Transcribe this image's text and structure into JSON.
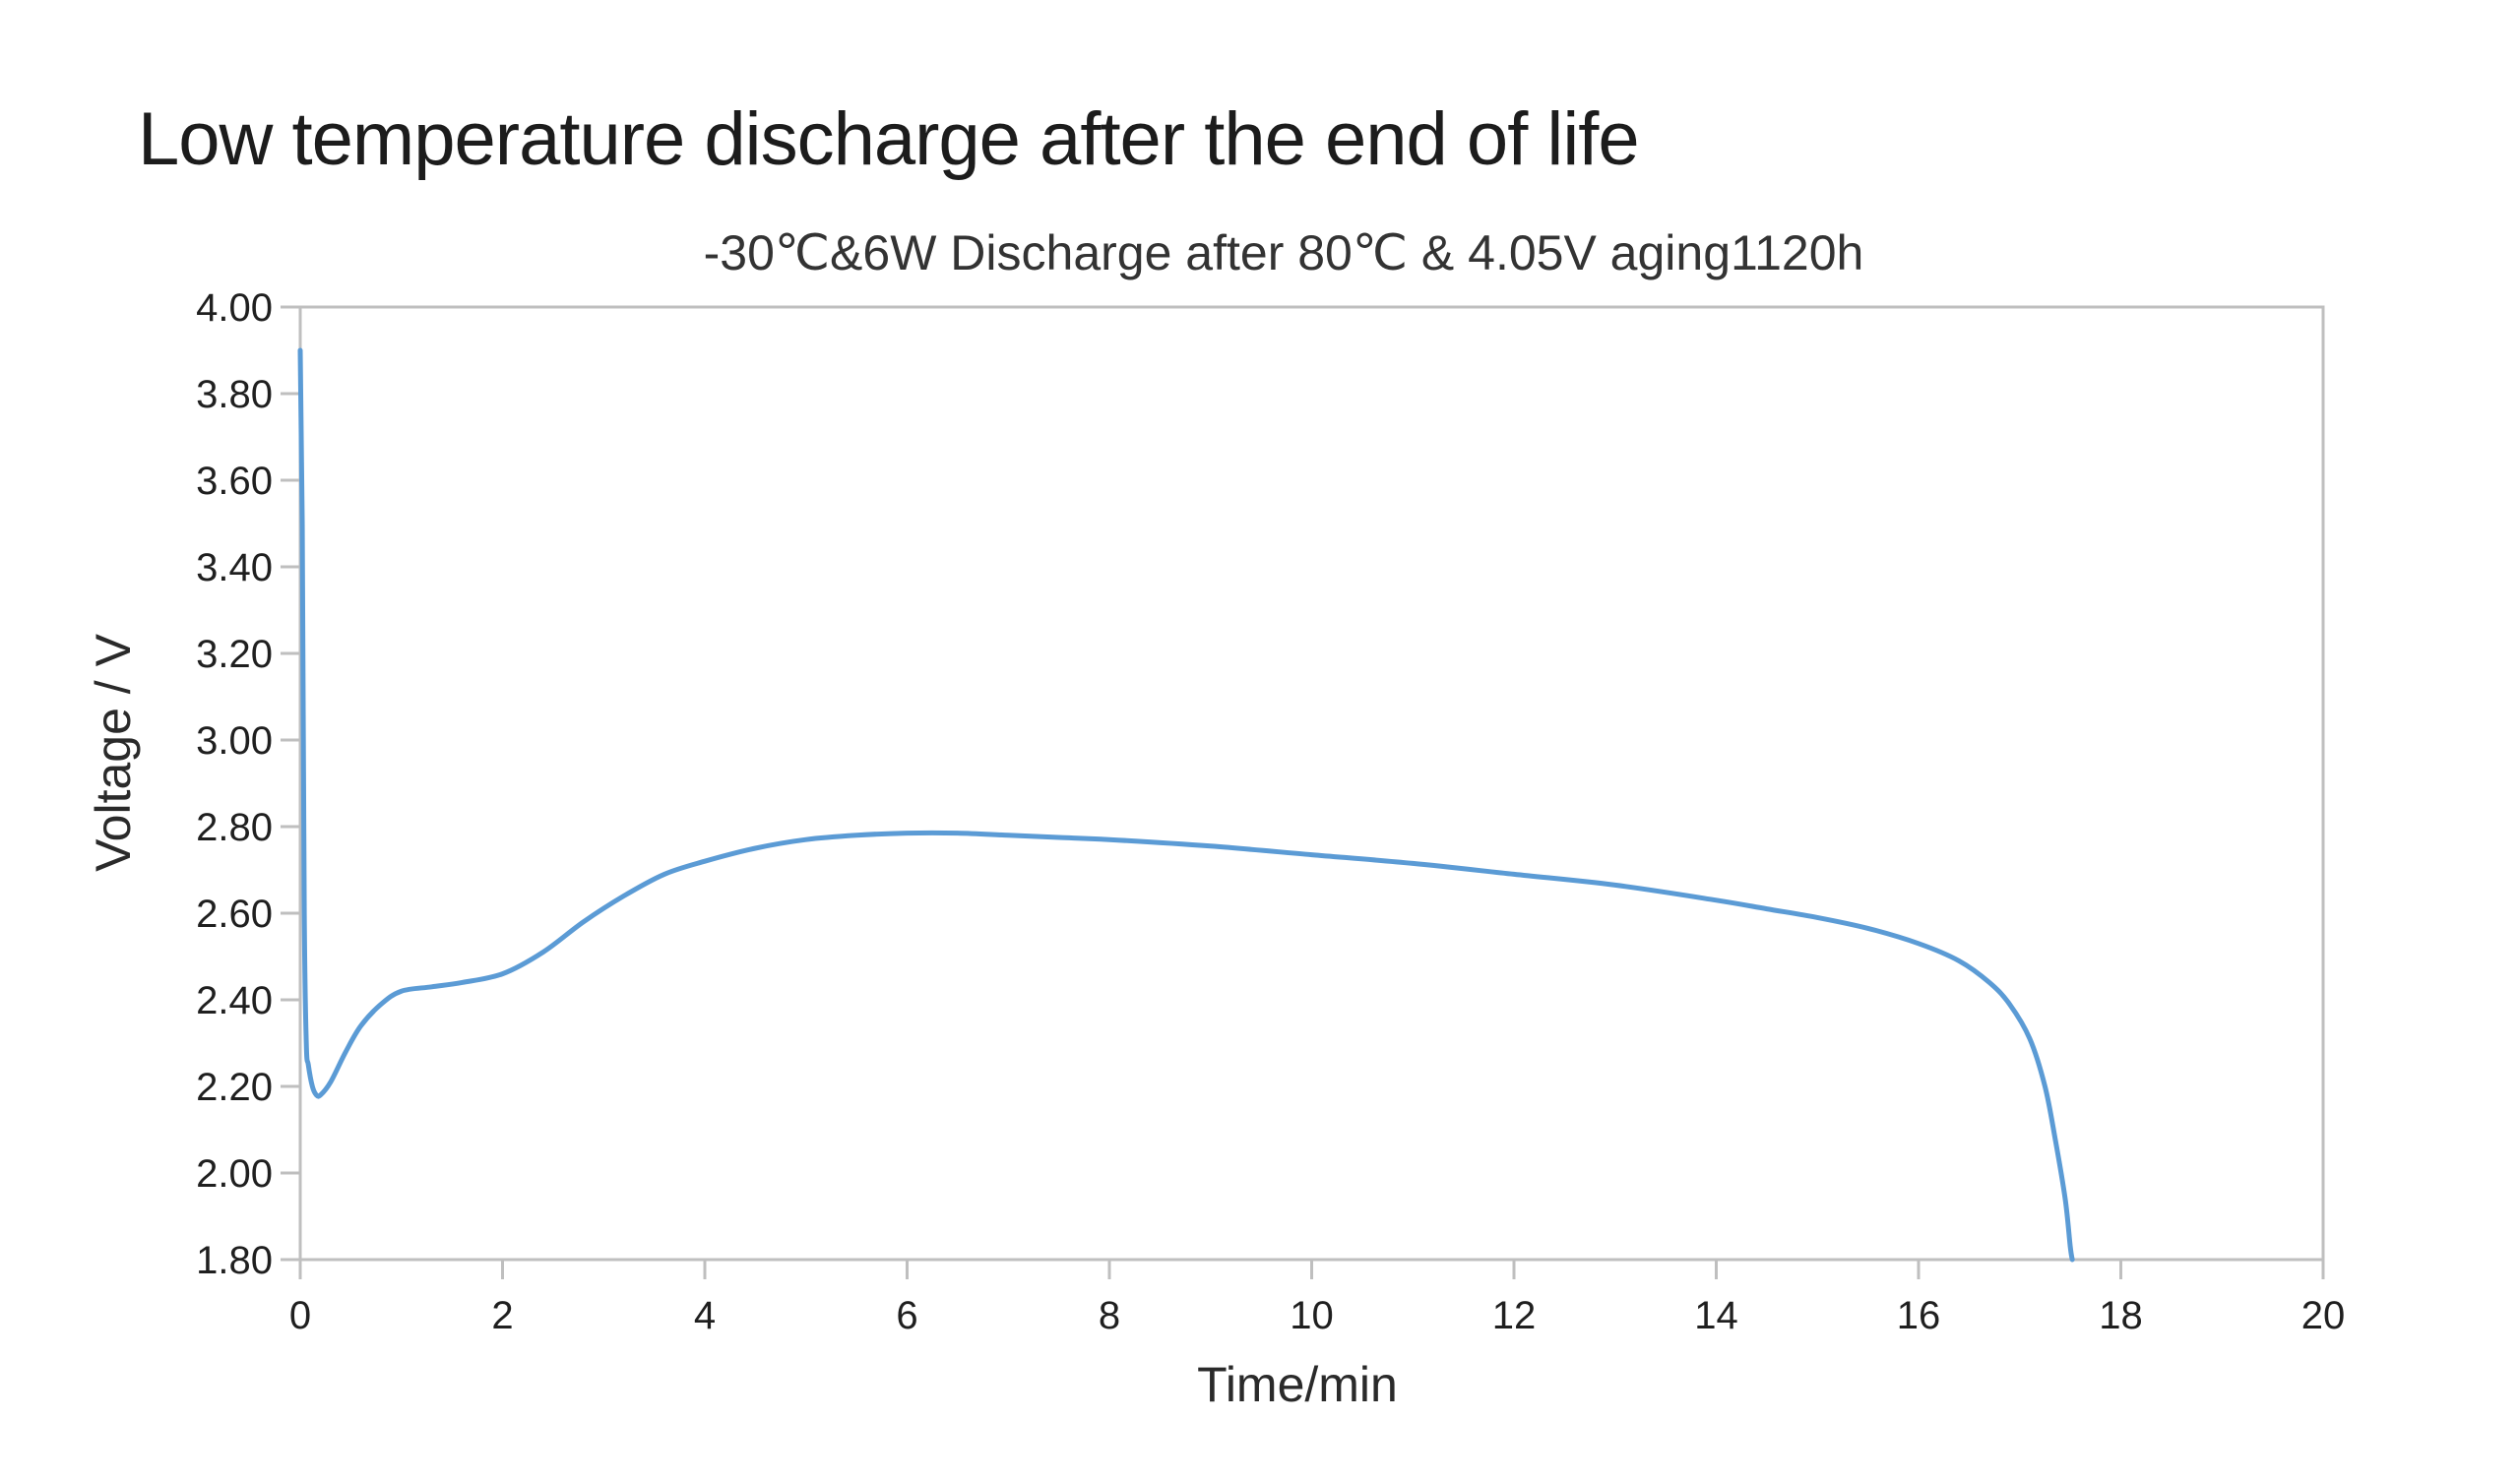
{
  "page": {
    "title": "Low temperature discharge after the end of life"
  },
  "chart_data": {
    "type": "line",
    "title": "-30℃&6W Discharge after  80℃ & 4.05V aging1120h",
    "xlabel": "Time/min",
    "ylabel": "Voltage / V",
    "xlim": [
      0,
      20
    ],
    "ylim": [
      1.8,
      4.0
    ],
    "x_ticks": [
      "0",
      "2",
      "4",
      "6",
      "8",
      "10",
      "12",
      "14",
      "16",
      "18",
      "20"
    ],
    "y_ticks": [
      "1.80",
      "2.00",
      "2.20",
      "2.40",
      "2.60",
      "2.80",
      "3.00",
      "3.20",
      "3.40",
      "3.60",
      "3.80",
      "4.00"
    ],
    "grid": false,
    "legend": "none",
    "line_color": "#5B9BD5",
    "series": [
      {
        "x": [
          0.0,
          0.02,
          0.04,
          0.06,
          0.08,
          0.12,
          0.16,
          0.2,
          0.3,
          0.45,
          0.6,
          0.8,
          1.0,
          1.3,
          1.6,
          2.0,
          2.4,
          2.8,
          3.2,
          3.6,
          4.0,
          4.5,
          5.0,
          5.5,
          6.0,
          6.5,
          7.0,
          7.5,
          8.0,
          9.0,
          10.0,
          11.0,
          12.0,
          13.0,
          14.0,
          14.5,
          15.0,
          15.5,
          16.0,
          16.4,
          16.7,
          16.9,
          17.1,
          17.25,
          17.35,
          17.45,
          17.5,
          17.52
        ],
        "y": [
          3.9,
          3.5,
          2.6,
          2.3,
          2.25,
          2.2,
          2.18,
          2.18,
          2.21,
          2.28,
          2.34,
          2.39,
          2.42,
          2.43,
          2.44,
          2.46,
          2.51,
          2.58,
          2.64,
          2.69,
          2.72,
          2.75,
          2.77,
          2.78,
          2.785,
          2.785,
          2.78,
          2.775,
          2.77,
          2.755,
          2.735,
          2.715,
          2.69,
          2.665,
          2.63,
          2.61,
          2.59,
          2.565,
          2.53,
          2.49,
          2.44,
          2.39,
          2.31,
          2.2,
          2.08,
          1.94,
          1.83,
          1.8
        ]
      }
    ]
  }
}
